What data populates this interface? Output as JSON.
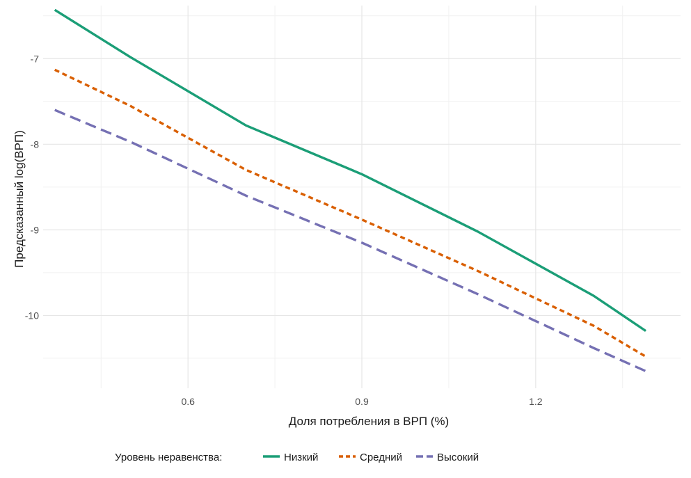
{
  "chart_data": {
    "type": "line",
    "title": "",
    "xlabel": "Доля потребления в ВРП (%)",
    "ylabel": "Предсказанный log(ВРП)",
    "xlim": [
      0.35,
      1.45
    ],
    "ylim": [
      -10.85,
      -6.38
    ],
    "x_ticks": [
      0.6,
      0.9,
      1.2
    ],
    "x_tick_labels": [
      "0.6",
      "0.9",
      "1.2"
    ],
    "y_ticks": [
      -7,
      -8,
      -9,
      -10
    ],
    "y_tick_labels": [
      "-7",
      "-8",
      "-9",
      "-10"
    ],
    "grid": true,
    "legend": {
      "position": "bottom",
      "title": "Уровень неравенства:",
      "entries": [
        "Низкий",
        "Средний",
        "Высокий"
      ]
    },
    "series": [
      {
        "name": "Низкий",
        "color": "#1b9e77",
        "dash": "solid",
        "x": [
          0.37,
          0.5,
          0.7,
          0.9,
          1.1,
          1.3,
          1.39
        ],
        "y": [
          -6.43,
          -6.98,
          -7.78,
          -8.35,
          -9.02,
          -9.77,
          -10.18
        ]
      },
      {
        "name": "Средний",
        "color": "#d95f02",
        "dash": "dotted",
        "x": [
          0.37,
          0.5,
          0.7,
          0.9,
          1.1,
          1.3,
          1.39
        ],
        "y": [
          -7.13,
          -7.55,
          -8.3,
          -8.88,
          -9.48,
          -10.12,
          -10.48
        ]
      },
      {
        "name": "Высокий",
        "color": "#7570b3",
        "dash": "dashed",
        "x": [
          0.37,
          0.5,
          0.7,
          0.9,
          1.1,
          1.3,
          1.39
        ],
        "y": [
          -7.6,
          -7.97,
          -8.6,
          -9.15,
          -9.75,
          -10.38,
          -10.65
        ]
      }
    ]
  }
}
